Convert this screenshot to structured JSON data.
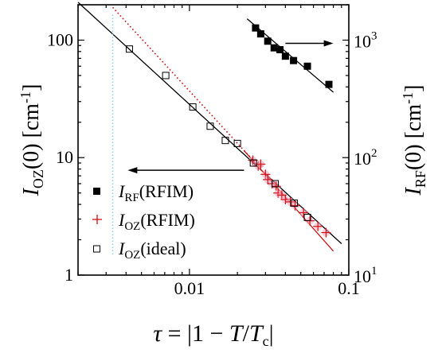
{
  "chart_data": {
    "type": "scatter",
    "x_scale": "log",
    "y_scale": "log",
    "xlim": [
      0.002,
      0.1
    ],
    "ylim_left": [
      1,
      200
    ],
    "ylim_right": [
      10,
      2000
    ],
    "x_ticks": [
      {
        "value": 0.01,
        "label": "0.01"
      },
      {
        "value": 0.1,
        "label": "0.1"
      }
    ],
    "y_left_ticks": [
      {
        "value": 1,
        "label": "1"
      },
      {
        "value": 10,
        "label": "10"
      },
      {
        "value": 100,
        "label": "100"
      }
    ],
    "y_right_ticks": [
      {
        "value": 10,
        "base": "10",
        "exp": "1"
      },
      {
        "value": 100,
        "base": "10",
        "exp": "2"
      },
      {
        "value": 1000,
        "base": "10",
        "exp": "3"
      }
    ],
    "xlabel": {
      "tau": "τ",
      "rest": " = |1 − ",
      "T1": "T",
      "slash": "/",
      "T2": "T",
      "sub": "c",
      "end": "|"
    },
    "ylabel_left": {
      "I": "I",
      "sub": "OZ",
      "rest": "(0) [cm",
      "sup": "-1",
      "end": "]"
    },
    "ylabel_right": {
      "I": "I",
      "sub": "RF",
      "rest": "(0) [cm",
      "sup": "-1",
      "end": "]"
    },
    "legend": [
      {
        "I": "I",
        "sub": "RF",
        "rest": "(RFIM)",
        "marker": "filled-square"
      },
      {
        "I": "I",
        "sub": "OZ",
        "rest": "(RFIM)",
        "marker": "plus"
      },
      {
        "I": "I",
        "sub": "OZ",
        "rest": "(ideal)",
        "marker": "open-square"
      }
    ],
    "series": [
      {
        "axis": "right",
        "marker": "filled-square",
        "color": "#000000",
        "x": [
          0.026,
          0.028,
          0.031,
          0.034,
          0.037,
          0.04,
          0.045,
          0.055,
          0.075
        ],
        "y": [
          1270,
          1130,
          980,
          860,
          830,
          730,
          670,
          600,
          420
        ]
      },
      {
        "axis": "left",
        "marker": "plus",
        "color": "#d01010",
        "x": [
          0.025,
          0.027,
          0.028,
          0.03,
          0.031,
          0.033,
          0.035,
          0.036,
          0.038,
          0.04,
          0.043,
          0.046,
          0.052,
          0.057,
          0.064,
          0.072
        ],
        "y": [
          9.5,
          8.5,
          8.8,
          7.2,
          6.5,
          6.0,
          5.7,
          5.0,
          4.8,
          4.4,
          4.2,
          3.9,
          3.4,
          2.9,
          2.6,
          2.3
        ]
      },
      {
        "axis": "left",
        "marker": "open-square",
        "color": "#000000",
        "x": [
          0.0042,
          0.0071,
          0.0105,
          0.0135,
          0.0168,
          0.02,
          0.0252,
          0.0345,
          0.0455,
          0.055
        ],
        "y": [
          84,
          50,
          27,
          18.5,
          14,
          13.2,
          9.0,
          6.0,
          4.1,
          3.1
        ]
      }
    ],
    "fit_lines": [
      {
        "axis": "left",
        "style": "solid",
        "color": "#000000",
        "x": [
          0.002,
          0.09
        ],
        "y": [
          210,
          1.85
        ]
      },
      {
        "axis": "right",
        "style": "solid",
        "color": "#000000",
        "x": [
          0.023,
          0.08
        ],
        "y": [
          1520,
          360
        ]
      },
      {
        "axis": "left",
        "style": "solid",
        "color": "#d01010",
        "x": [
          0.022,
          0.08
        ],
        "y": [
          11.5,
          1.6
        ]
      },
      {
        "axis": "left",
        "style": "dotted",
        "color": "#d01010",
        "x": [
          0.0033,
          0.027
        ],
        "y": [
          190,
          8.5
        ]
      },
      {
        "axis": "left",
        "style": "dotted-vertical",
        "color": "#8ecfe8",
        "x": [
          0.0033,
          0.0033
        ],
        "y": [
          1.5,
          170
        ]
      }
    ],
    "arrows": [
      {
        "points_to": "left-axis",
        "x_from": 0.022,
        "x_to": 0.0041,
        "y": 7.8
      },
      {
        "points_to": "right-axis",
        "x_from": 0.04,
        "x_to": 0.08,
        "y": 940
      }
    ]
  }
}
